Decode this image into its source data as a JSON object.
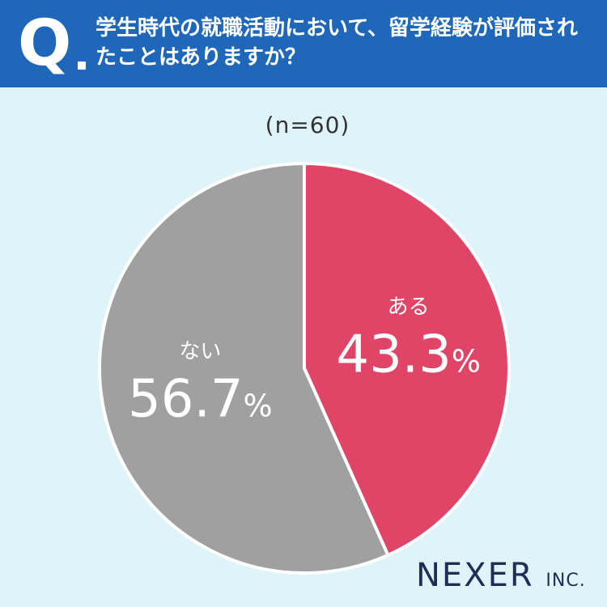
{
  "header": {
    "q_letter": "Q",
    "question": "学生時代の就職活動において、留学経験が評価されたことはありますか？"
  },
  "sample_size_label": "(n=60)",
  "brand": {
    "name": "NEXER",
    "suffix": "INC."
  },
  "colors": {
    "header": "#1f68b9",
    "background": "#dff4f9",
    "yes": "#e04567",
    "no": "#a0a0a0"
  },
  "chart_data": {
    "type": "pie",
    "title": "",
    "slices": [
      {
        "label": "ある",
        "value": 43.3,
        "display": "43.3",
        "unit": "%",
        "color": "#e04567"
      },
      {
        "label": "ない",
        "value": 56.7,
        "display": "56.7",
        "unit": "%",
        "color": "#a0a0a0"
      }
    ],
    "start": "12 o'clock",
    "direction": "clockwise",
    "n": 60
  }
}
